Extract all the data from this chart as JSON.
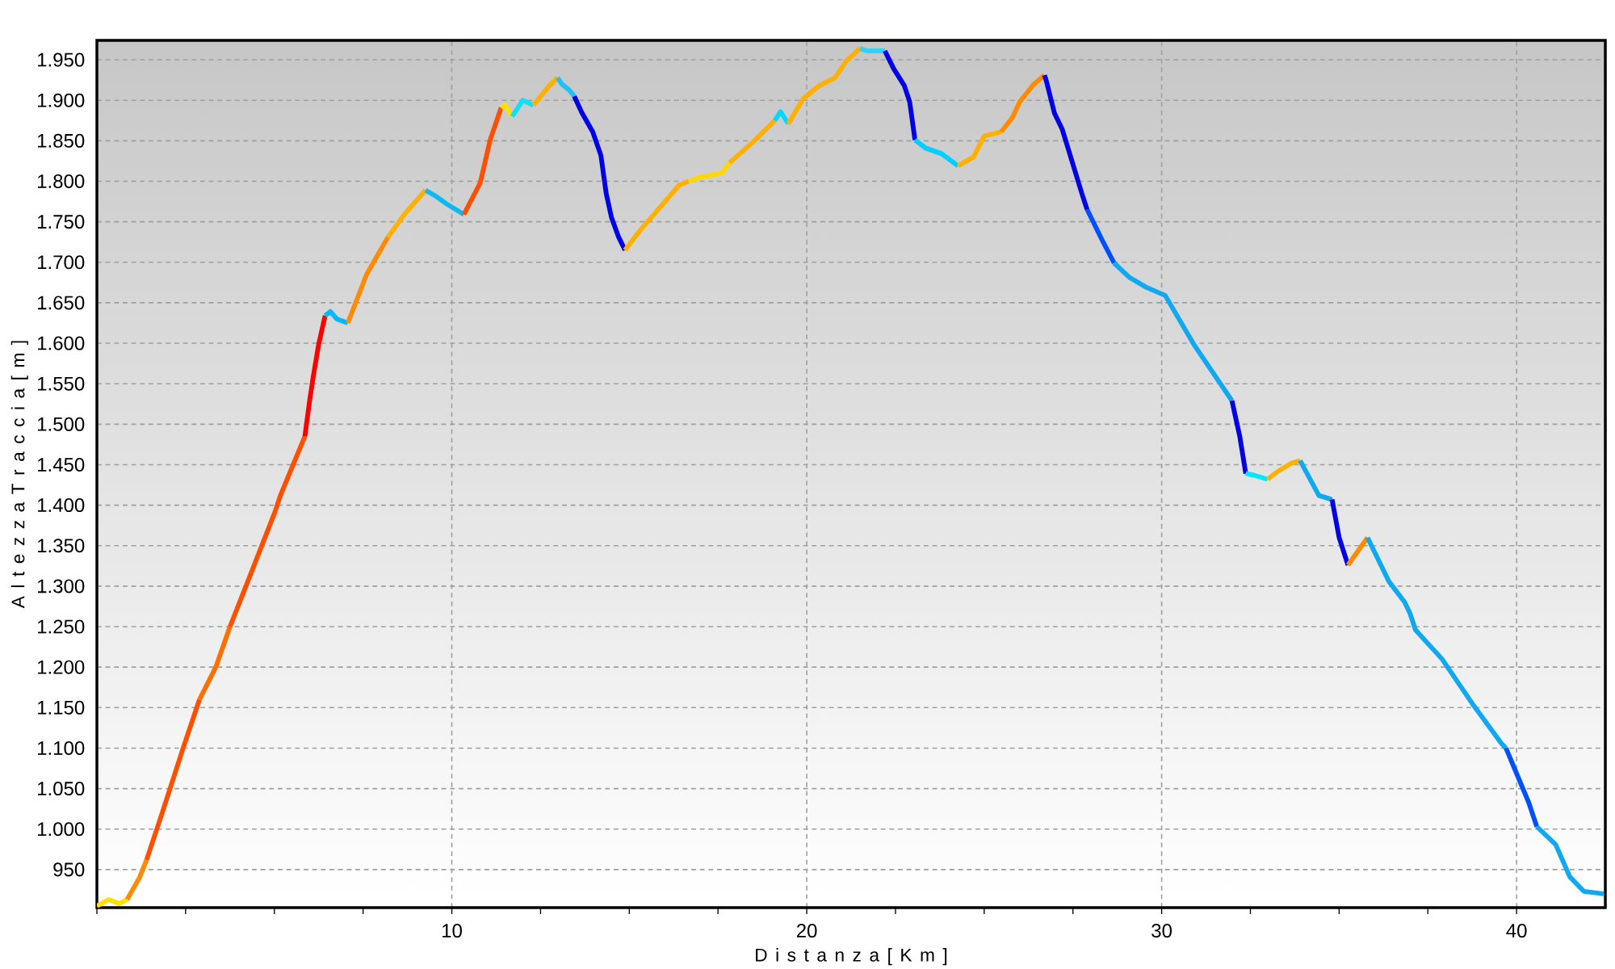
{
  "chart_data": {
    "type": "line",
    "xlabel": "D i s t a n z a [ K m ]",
    "ylabel": "A l t e z z a T r a c c i a [ m ]",
    "grid": true,
    "xlim": [
      0,
      42.5
    ],
    "ylim": [
      903,
      1974
    ],
    "xticks": [
      {
        "value": 0,
        "label": null
      },
      {
        "value": 2.5,
        "label": null
      },
      {
        "value": 5,
        "label": null
      },
      {
        "value": 7.5,
        "label": null
      },
      10,
      {
        "value": 12.5,
        "label": null
      },
      {
        "value": 15,
        "label": null
      },
      {
        "value": 17.5,
        "label": null
      },
      20,
      {
        "value": 22.5,
        "label": null
      },
      {
        "value": 25,
        "label": null
      },
      {
        "value": 27.5,
        "label": null
      },
      30,
      {
        "value": 32.5,
        "label": null
      },
      {
        "value": 35,
        "label": null
      },
      {
        "value": 37.5,
        "label": null
      },
      40
    ],
    "yticks": [
      950,
      {
        "value": 1000,
        "label": "1.000"
      },
      {
        "value": 1050,
        "label": "1.050"
      },
      {
        "value": 1100,
        "label": "1.100"
      },
      {
        "value": 1150,
        "label": "1.150"
      },
      {
        "value": 1200,
        "label": "1.200"
      },
      {
        "value": 1250,
        "label": "1.250"
      },
      {
        "value": 1300,
        "label": "1.300"
      },
      {
        "value": 1350,
        "label": "1.350"
      },
      {
        "value": 1400,
        "label": "1.400"
      },
      {
        "value": 1450,
        "label": "1.450"
      },
      {
        "value": 1500,
        "label": "1.500"
      },
      {
        "value": 1550,
        "label": "1.550"
      },
      {
        "value": 1600,
        "label": "1.600"
      },
      {
        "value": 1650,
        "label": "1.650"
      },
      {
        "value": 1700,
        "label": "1.700"
      },
      {
        "value": 1750,
        "label": "1.750"
      },
      {
        "value": 1800,
        "label": "1.800"
      },
      {
        "value": 1850,
        "label": "1.850"
      },
      {
        "value": 1900,
        "label": "1.900"
      },
      {
        "value": 1950,
        "label": "1.950"
      }
    ],
    "series": [
      {
        "color": "#ffe000",
        "x": [
          0,
          0.33,
          0.63,
          0.85
        ],
        "values": [
          905,
          913,
          908,
          913
        ]
      },
      {
        "color": "#ff8c00",
        "x": [
          0.85,
          1.2,
          1.4
        ],
        "values": [
          913,
          940,
          962
        ]
      },
      {
        "color": "#ff5000",
        "x": [
          1.4,
          1.84,
          2.43,
          2.89
        ],
        "values": [
          962,
          1020,
          1100,
          1160
        ]
      },
      {
        "color": "#ff7000",
        "x": [
          2.89,
          3.35,
          3.75
        ],
        "values": [
          1160,
          1200,
          1250
        ]
      },
      {
        "color": "#ff5000",
        "x": [
          3.75,
          4.2,
          5.02,
          5.17,
          5.86
        ],
        "values": [
          1250,
          1300,
          1392,
          1412,
          1485
        ]
      },
      {
        "color": "#ff0000",
        "x": [
          5.86,
          6.0,
          6.1,
          6.25,
          6.43
        ],
        "values": [
          1485,
          1531,
          1560,
          1599,
          1634
        ]
      },
      {
        "color": "#00b8ff",
        "x": [
          6.43,
          6.58,
          6.76,
          7.07
        ],
        "values": [
          1634,
          1639,
          1630,
          1625
        ]
      },
      {
        "color": "#ff8c00",
        "x": [
          7.07,
          7.6,
          8.2
        ],
        "values": [
          1625,
          1685,
          1731
        ]
      },
      {
        "color": "#ffb000",
        "x": [
          8.2,
          8.66,
          9.26
        ],
        "values": [
          1731,
          1759,
          1789
        ]
      },
      {
        "color": "#10b8f0",
        "x": [
          9.26,
          9.57,
          9.89,
          10.34
        ],
        "values": [
          1789,
          1781,
          1771,
          1759
        ]
      },
      {
        "color": "#ff5000",
        "x": [
          10.34,
          10.8,
          11.08,
          11.39
        ],
        "values": [
          1759,
          1798,
          1851,
          1891
        ]
      },
      {
        "color": "#ffe000",
        "x": [
          11.39,
          11.5,
          11.7
        ],
        "values": [
          1891,
          1894,
          1880
        ]
      },
      {
        "color": "#10e0f8",
        "x": [
          11.7,
          12.0,
          12.3
        ],
        "values": [
          1880,
          1900,
          1894
        ]
      },
      {
        "color": "#ffb000",
        "x": [
          12.3,
          12.75,
          12.98
        ],
        "values": [
          1894,
          1918,
          1928
        ]
      },
      {
        "color": "#20c0f8",
        "x": [
          12.98,
          13.1,
          13.3,
          13.45
        ],
        "values": [
          1928,
          1920,
          1913,
          1905
        ]
      },
      {
        "color": "#0000e6",
        "x": [
          13.45,
          13.66,
          13.97,
          14.2,
          14.35,
          14.5,
          14.7,
          14.88
        ],
        "values": [
          1905,
          1885,
          1861,
          1832,
          1785,
          1755,
          1731,
          1715
        ]
      },
      {
        "color": "#ffb000",
        "x": [
          14.88,
          15.3,
          15.93,
          16.4,
          16.67
        ],
        "values": [
          1715,
          1739,
          1771,
          1795,
          1800
        ]
      },
      {
        "color": "#ffd800",
        "x": [
          16.67,
          17.0,
          17.6,
          17.83
        ],
        "values": [
          1800,
          1805,
          1810,
          1823
        ]
      },
      {
        "color": "#ffb000",
        "x": [
          17.83,
          18.5,
          19.1
        ],
        "values": [
          1823,
          1849,
          1875
        ]
      },
      {
        "color": "#00d8ff",
        "x": [
          19.1,
          19.26,
          19.48
        ],
        "values": [
          1875,
          1886,
          1871
        ]
      },
      {
        "color": "#ffb000",
        "x": [
          19.48,
          19.9,
          20.35,
          20.8,
          21.1,
          21.5
        ],
        "values": [
          1871,
          1902,
          1918,
          1928,
          1948,
          1964
        ]
      },
      {
        "color": "#30d0ff",
        "x": [
          21.5,
          21.7,
          22.2
        ],
        "values": [
          1964,
          1961,
          1961
        ]
      },
      {
        "color": "#0000e6",
        "x": [
          22.2,
          22.45,
          22.75,
          22.9,
          23.05
        ],
        "values": [
          1961,
          1939,
          1918,
          1898,
          1851
        ]
      },
      {
        "color": "#00d0ff",
        "x": [
          23.05,
          23.35,
          23.8,
          24.26
        ],
        "values": [
          1851,
          1841,
          1834,
          1819
        ]
      },
      {
        "color": "#ffb000",
        "x": [
          24.26,
          24.7,
          25.0,
          25.48
        ],
        "values": [
          1819,
          1830,
          1856,
          1861
        ]
      },
      {
        "color": "#ff8c00",
        "x": [
          25.48,
          25.8,
          26.0,
          26.4,
          26.7
        ],
        "values": [
          1861,
          1879,
          1898,
          1920,
          1931
        ]
      },
      {
        "color": "#0000e6",
        "x": [
          26.7,
          26.75,
          26.98,
          27.2,
          27.43,
          27.75,
          27.9
        ],
        "values": [
          1931,
          1924,
          1884,
          1864,
          1831,
          1785,
          1765
        ]
      },
      {
        "color": "#0050ff",
        "x": [
          27.9,
          28.35,
          28.66
        ],
        "values": [
          1765,
          1725,
          1699
        ]
      },
      {
        "color": "#10a8f0",
        "x": [
          28.66,
          29.1,
          29.57,
          30.1,
          30.9,
          31.98
        ],
        "values": [
          1699,
          1681,
          1669,
          1659,
          1599,
          1529
        ]
      },
      {
        "color": "#0000e6",
        "x": [
          31.98,
          32.2,
          32.37
        ],
        "values": [
          1529,
          1485,
          1439
        ]
      },
      {
        "color": "#00e8ff",
        "x": [
          32.37,
          32.6,
          32.98
        ],
        "values": [
          1439,
          1437,
          1432
        ]
      },
      {
        "color": "#ffb000",
        "x": [
          32.98,
          33.28,
          33.66,
          33.9
        ],
        "values": [
          1432,
          1442,
          1452,
          1455
        ]
      },
      {
        "color": "#10a8f0",
        "x": [
          33.9,
          34.43,
          34.8
        ],
        "values": [
          1455,
          1412,
          1407
        ]
      },
      {
        "color": "#0000e6",
        "x": [
          34.8,
          35.0,
          35.25
        ],
        "values": [
          1407,
          1360,
          1326
        ]
      },
      {
        "color": "#ff8c00",
        "x": [
          35.25,
          35.8
        ],
        "values": [
          1326,
          1360
        ]
      },
      {
        "color": "#10a8f0",
        "x": [
          35.8,
          36.4,
          36.85,
          37.0,
          37.15,
          37.9,
          38.8,
          39.57,
          39.7
        ],
        "values": [
          1360,
          1306,
          1280,
          1266,
          1246,
          1210,
          1152,
          1106,
          1100
        ]
      },
      {
        "color": "#0050ff",
        "x": [
          39.7,
          40.34,
          40.57
        ],
        "values": [
          1100,
          1033,
          1003
        ]
      },
      {
        "color": "#10a8f0",
        "x": [
          40.57,
          41.1,
          41.5,
          41.9,
          42.45
        ],
        "values": [
          1003,
          981,
          941,
          923,
          920
        ]
      }
    ]
  }
}
